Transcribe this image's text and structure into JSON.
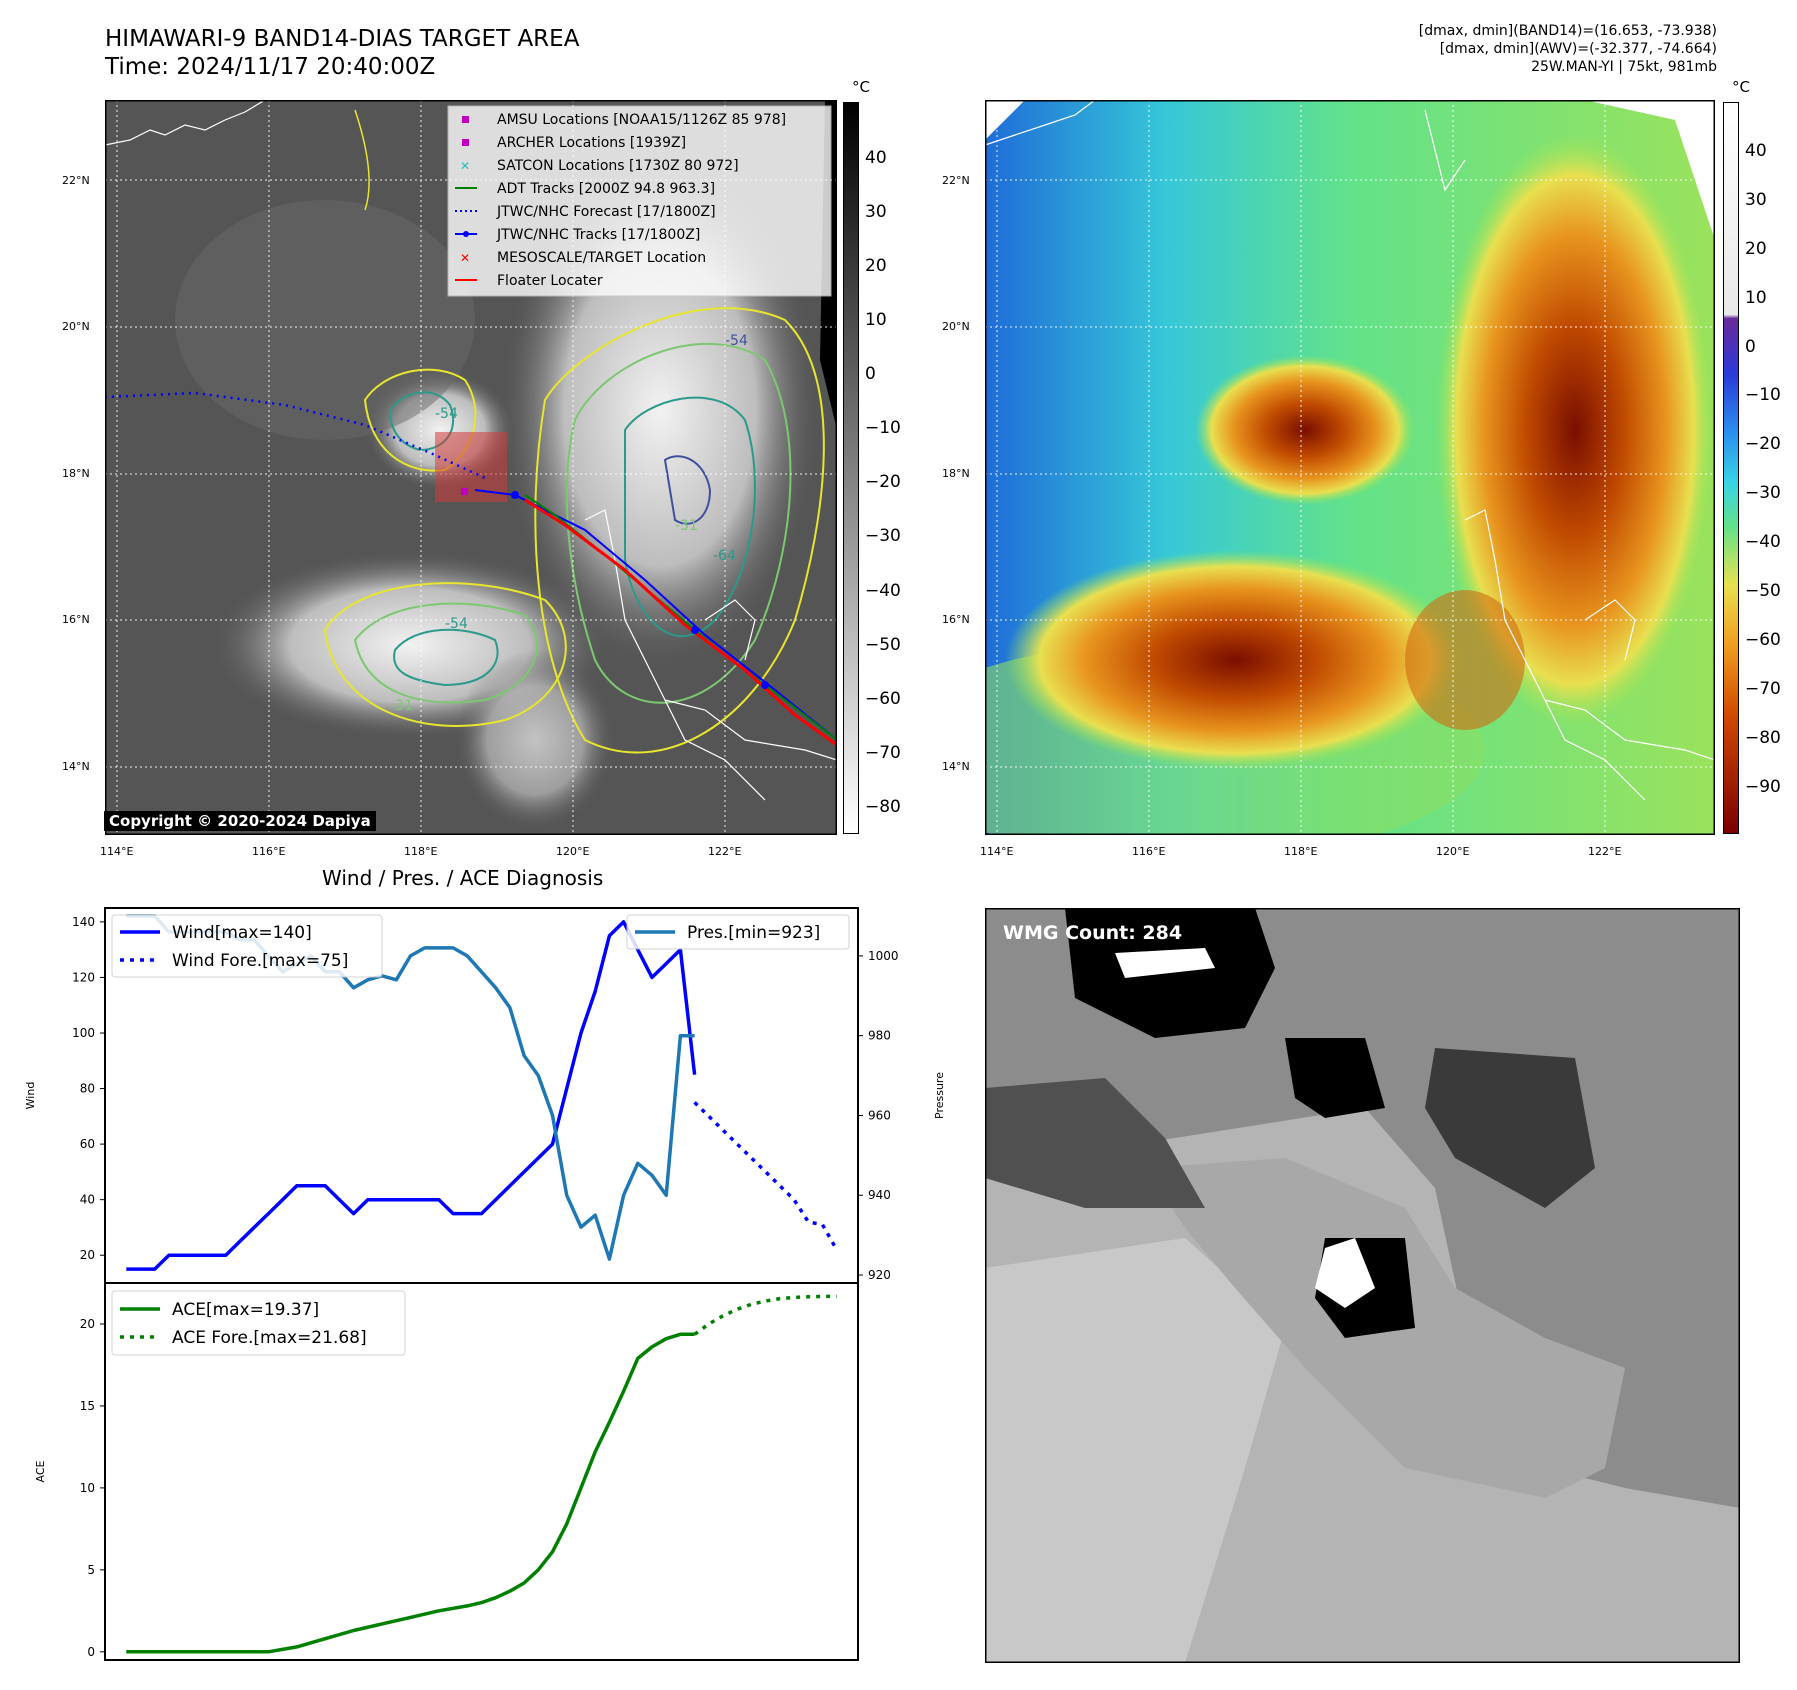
{
  "header": {
    "title_line1": "HIMAWARI-9 BAND14-DIAS TARGET AREA",
    "title_line2": "Time: 2024/11/17 20:40:00Z",
    "info_line1": "[dmax, dmin](BAND14)=(16.653, -73.938)",
    "info_line2": "[dmax, dmin](AWV)=(-32.377, -74.664)",
    "info_line3": "25W.MAN-YI | 75kt, 981mb"
  },
  "map": {
    "lat_labels": [
      "22°N",
      "20°N",
      "18°N",
      "16°N",
      "14°N"
    ],
    "lon_labels": [
      "114°E",
      "116°E",
      "118°E",
      "120°E",
      "122°E"
    ],
    "colorbar_unit": "°C",
    "ir_ticks": [
      "40",
      "30",
      "20",
      "10",
      "0",
      "−10",
      "−20",
      "−30",
      "−40",
      "−50",
      "−60",
      "−70",
      "−80"
    ],
    "enh_ticks": [
      "40",
      "30",
      "20",
      "10",
      "0",
      "−10",
      "−20",
      "−30",
      "−40",
      "−50",
      "−60",
      "−70",
      "−80",
      "−90"
    ],
    "contour_labels": [
      "-54",
      "-54",
      "-54",
      "-64",
      "-31",
      "-31"
    ],
    "copyright": "Copyright © 2020-2024 Dapiya",
    "legend": [
      {
        "label": "AMSU Locations [NOAA15/1126Z 85 978]",
        "color": "#c000c0",
        "marker": "square"
      },
      {
        "label": "ARCHER Locations [1939Z]",
        "color": "#c000c0",
        "marker": "square"
      },
      {
        "label": "SATCON Locations [1730Z 80 972]",
        "color": "#20c0c0",
        "marker": "x"
      },
      {
        "label": "ADT Tracks [2000Z 94.8 963.3]",
        "color": "#008000",
        "marker": "line"
      },
      {
        "label": "JTWC/NHC Forecast [17/1800Z]",
        "color": "#0000ff",
        "marker": "dotted"
      },
      {
        "label": "JTWC/NHC Tracks [17/1800Z]",
        "color": "#0000ff",
        "marker": "line-dot"
      },
      {
        "label": "MESOSCALE/TARGET Location",
        "color": "#ff0000",
        "marker": "x"
      },
      {
        "label": "Floater Locater",
        "color": "#ff0000",
        "marker": "line"
      }
    ]
  },
  "wmg": {
    "count_label": "WMG Count: 284"
  },
  "chart_data": [
    {
      "type": "line",
      "title": "Wind / Pres. / ACE Diagnosis",
      "ylabel": "Wind",
      "y2label": "Pressure",
      "ylim": [
        10,
        145
      ],
      "y2lim": [
        918,
        1012
      ],
      "yticks": [
        20,
        40,
        60,
        80,
        100,
        120,
        140
      ],
      "y2ticks": [
        920,
        940,
        960,
        980,
        1000
      ],
      "legend_left": [
        "Wind[max=140]",
        "Wind Fore.[max=75]"
      ],
      "legend_right": [
        "Pres.[min=923]"
      ],
      "series": [
        {
          "name": "Wind[max=140]",
          "color": "#0000ff",
          "style": "solid",
          "x": [
            0,
            2,
            3,
            4,
            5,
            6,
            7,
            8,
            9,
            10,
            11,
            12,
            13,
            14,
            15,
            16,
            17,
            18,
            19,
            20,
            21,
            22,
            23,
            24,
            25,
            26,
            27,
            28,
            29,
            30,
            31,
            32,
            33,
            34,
            35,
            36,
            37,
            38,
            39,
            40
          ],
          "values": [
            15,
            15,
            20,
            20,
            20,
            20,
            20,
            25,
            30,
            35,
            40,
            45,
            45,
            45,
            40,
            35,
            40,
            40,
            40,
            40,
            40,
            40,
            35,
            35,
            35,
            40,
            45,
            50,
            55,
            60,
            80,
            100,
            115,
            135,
            140,
            130,
            120,
            125,
            130,
            85
          ]
        },
        {
          "name": "Wind Fore.[max=75]",
          "color": "#0000ff",
          "style": "dotted",
          "x": [
            40,
            41,
            42,
            43,
            44,
            45,
            46,
            47,
            48,
            49,
            50
          ],
          "values": [
            75,
            70,
            65,
            60,
            55,
            50,
            45,
            40,
            32,
            31,
            22
          ]
        },
        {
          "name": "Pres.[min=923]",
          "color": "#1f77b4",
          "style": "solid",
          "axis": "right",
          "x": [
            0,
            2,
            3,
            4,
            5,
            6,
            7,
            8,
            9,
            10,
            11,
            12,
            13,
            14,
            15,
            16,
            17,
            18,
            19,
            20,
            21,
            22,
            23,
            24,
            25,
            26,
            27,
            28,
            29,
            30,
            31,
            32,
            33,
            34,
            35,
            36,
            37,
            38,
            39,
            40
          ],
          "values": [
            1010,
            1010,
            1006,
            1006,
            1006,
            1006,
            1006,
            1004,
            1004,
            1000,
            996,
            998,
            1000,
            996,
            996,
            992,
            994,
            995,
            994,
            1000,
            1002,
            1002,
            1002,
            1000,
            996,
            992,
            987,
            975,
            970,
            960,
            940,
            932,
            935,
            924,
            940,
            948,
            945,
            940,
            980,
            980
          ]
        }
      ]
    },
    {
      "type": "line",
      "ylabel": "ACE",
      "ylim": [
        -0.5,
        22.5
      ],
      "yticks": [
        0,
        5,
        10,
        15,
        20
      ],
      "legend": [
        "ACE[max=19.37]",
        "ACE Fore.[max=21.68]"
      ],
      "series": [
        {
          "name": "ACE[max=19.37]",
          "color": "#008000",
          "style": "solid",
          "x": [
            0,
            2,
            4,
            6,
            8,
            10,
            12,
            14,
            16,
            18,
            20,
            22,
            24,
            25,
            26,
            27,
            28,
            29,
            30,
            31,
            32,
            33,
            34,
            35,
            36,
            37,
            38,
            39,
            40
          ],
          "values": [
            0,
            0,
            0,
            0,
            0,
            0,
            0.3,
            0.8,
            1.3,
            1.7,
            2.1,
            2.5,
            2.8,
            3.0,
            3.3,
            3.7,
            4.2,
            5.0,
            6.1,
            7.8,
            10.0,
            12.2,
            14.0,
            15.9,
            17.9,
            18.6,
            19.1,
            19.37,
            19.37
          ]
        },
        {
          "name": "ACE Fore.[max=21.68]",
          "color": "#008000",
          "style": "dotted",
          "x": [
            40,
            41,
            42,
            43,
            44,
            45,
            46,
            47,
            48,
            49,
            50
          ],
          "values": [
            19.37,
            20.0,
            20.5,
            20.9,
            21.2,
            21.4,
            21.55,
            21.62,
            21.66,
            21.68,
            21.68
          ]
        }
      ]
    }
  ]
}
